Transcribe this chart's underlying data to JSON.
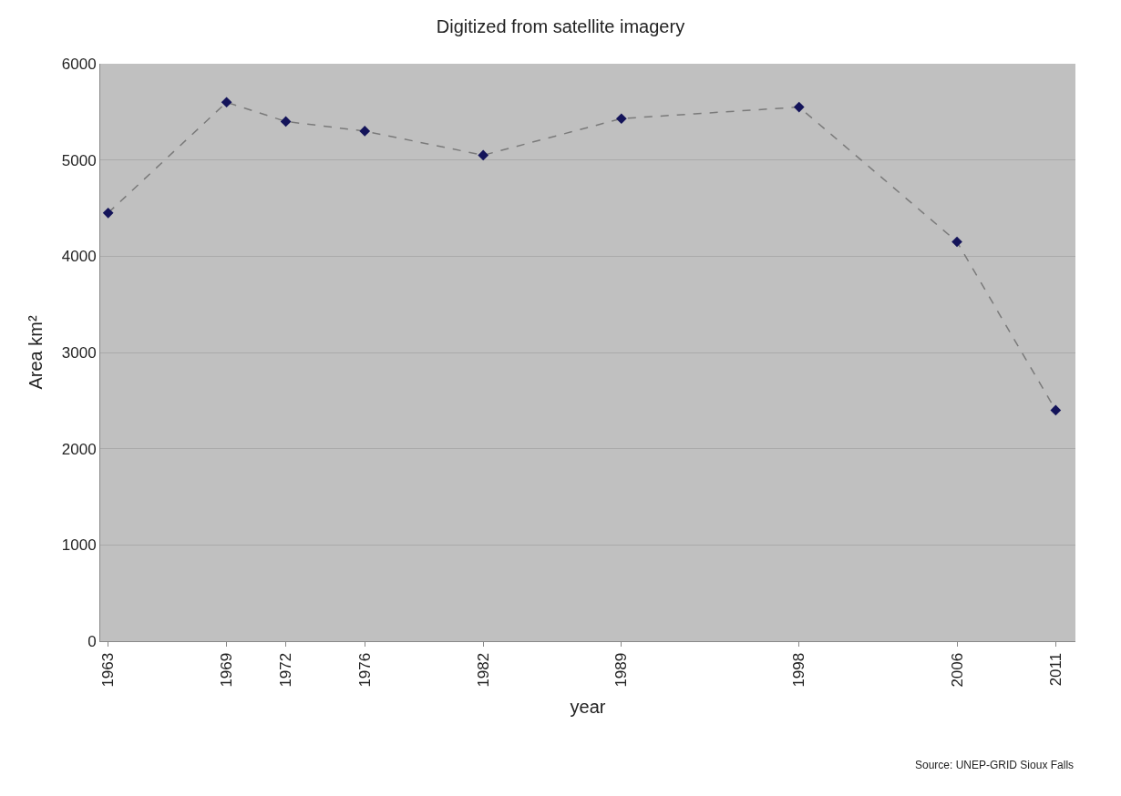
{
  "chart_data": {
    "type": "line",
    "title": "Digitized from satellite imagery",
    "xlabel": "year",
    "ylabel": "Area km²",
    "x": [
      1963,
      1969,
      1972,
      1976,
      1982,
      1989,
      1998,
      2006,
      2011
    ],
    "series": [
      {
        "color": "#14145a",
        "values": [
          4450,
          5600,
          5400,
          5300,
          5050,
          5430,
          5550,
          4150,
          2400
        ]
      }
    ],
    "xlim": [
      1962.6,
      2012
    ],
    "xticks": [
      1963,
      1969,
      1972,
      1976,
      1982,
      1989,
      1998,
      2006,
      2011
    ],
    "ylim": [
      0,
      6000
    ],
    "yticks": [
      0,
      1000,
      2000,
      3000,
      4000,
      5000,
      6000
    ],
    "grid": "y",
    "marker": "diamond",
    "line_style": "dashed",
    "legend": false,
    "annotations": [
      "Source: UNEP-GRID Sioux Falls"
    ]
  }
}
